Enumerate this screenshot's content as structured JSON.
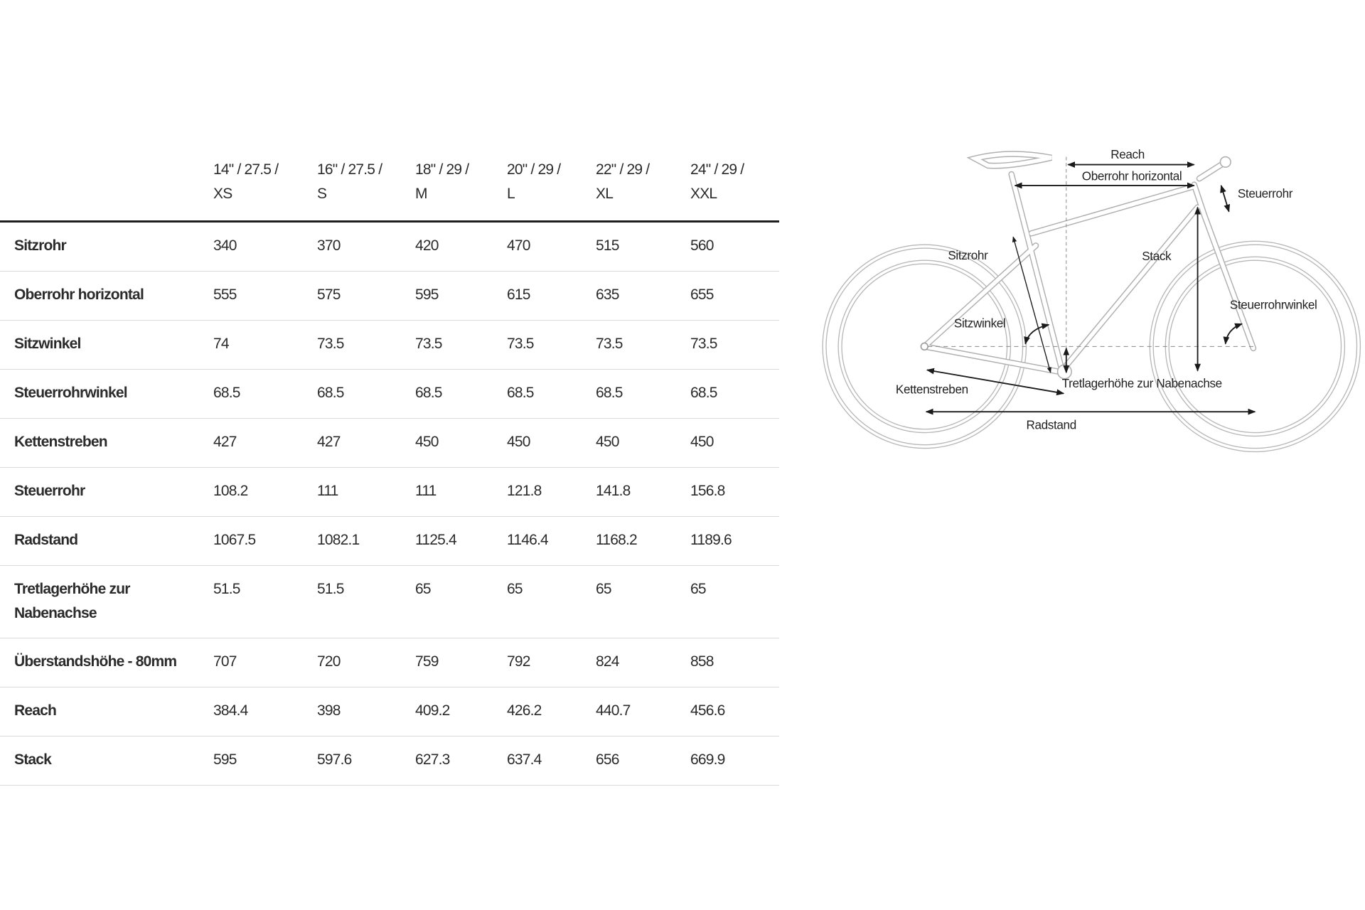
{
  "table": {
    "columns": [
      "14\" / 27.5 / XS",
      "16\" / 27.5 / S",
      "18\" / 29 / M",
      "20\" / 29 / L",
      "22\" / 29 / XL",
      "24\" / 29 / XXL"
    ],
    "column_lines": [
      [
        "14\" / 27.5 /",
        "XS"
      ],
      [
        "16\" / 27.5 /",
        "S"
      ],
      [
        "18\" / 29 /",
        "M"
      ],
      [
        "20\" / 29 /",
        "L"
      ],
      [
        "22\" / 29 /",
        "XL"
      ],
      [
        "24\" / 29 /",
        "XXL"
      ]
    ],
    "rows": [
      {
        "label": "Sitzrohr",
        "values": [
          "340",
          "370",
          "420",
          "470",
          "515",
          "560"
        ]
      },
      {
        "label": "Oberrohr horizontal",
        "values": [
          "555",
          "575",
          "595",
          "615",
          "635",
          "655"
        ]
      },
      {
        "label": "Sitzwinkel",
        "values": [
          "74",
          "73.5",
          "73.5",
          "73.5",
          "73.5",
          "73.5"
        ]
      },
      {
        "label": "Steuerrohrwinkel",
        "values": [
          "68.5",
          "68.5",
          "68.5",
          "68.5",
          "68.5",
          "68.5"
        ]
      },
      {
        "label": "Kettenstreben",
        "values": [
          "427",
          "427",
          "450",
          "450",
          "450",
          "450"
        ]
      },
      {
        "label": "Steuerrohr",
        "values": [
          "108.2",
          "111",
          "111",
          "121.8",
          "141.8",
          "156.8"
        ]
      },
      {
        "label": "Radstand",
        "values": [
          "1067.5",
          "1082.1",
          "1125.4",
          "1146.4",
          "1168.2",
          "1189.6"
        ]
      },
      {
        "label": "Tretlagerhöhe zur Nabenachse",
        "values": [
          "51.5",
          "51.5",
          "65",
          "65",
          "65",
          "65"
        ]
      },
      {
        "label": "Überstandshöhe - 80mm",
        "values": [
          "707",
          "720",
          "759",
          "792",
          "824",
          "858"
        ]
      },
      {
        "label": "Reach",
        "values": [
          "384.4",
          "398",
          "409.2",
          "426.2",
          "440.7",
          "456.6"
        ]
      },
      {
        "label": "Stack",
        "values": [
          "595",
          "597.6",
          "627.3",
          "637.4",
          "656",
          "669.9"
        ]
      }
    ]
  },
  "diagram": {
    "labels": {
      "reach": "Reach",
      "oberrohr": "Oberrohr horizontal",
      "steuerrohr": "Steuerrohr",
      "sitzrohr": "Sitzrohr",
      "stack": "Stack",
      "sitzwinkel": "Sitzwinkel",
      "steuerrohrwinkel": "Steuerrohrwinkel",
      "kettenstreben": "Kettenstreben",
      "tretlager": "Tretlagerhöhe zur Nabenachse",
      "radstand": "Radstand"
    },
    "colors": {
      "frame": "#b0b0b0",
      "arrows": "#1a1a1a"
    }
  }
}
